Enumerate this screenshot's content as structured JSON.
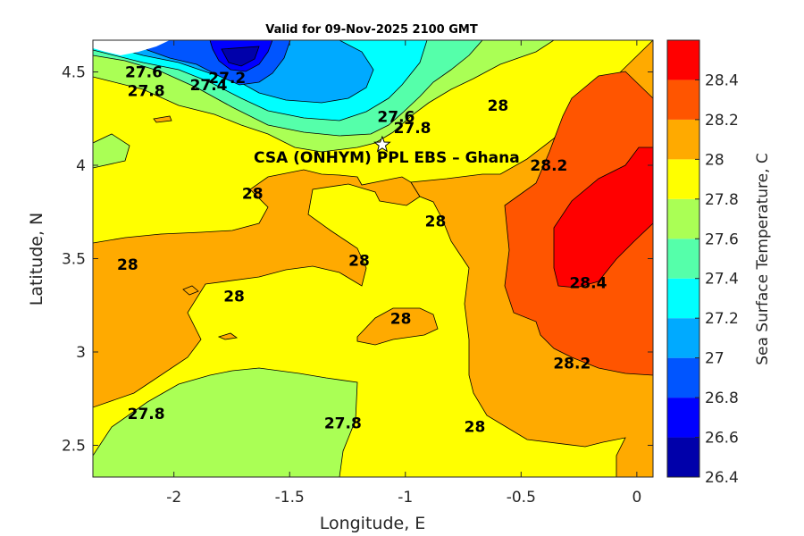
{
  "chart_data": {
    "type": "heatmap",
    "subtype": "filled-contour",
    "title": "Valid for 09-Nov-2025 2100 GMT",
    "xlabel": "Longitude, E",
    "ylabel": "Latitude, N",
    "xlim": [
      -2.35,
      0.07
    ],
    "ylim": [
      2.33,
      4.67
    ],
    "x_ticks": [
      -2,
      -1.5,
      -1,
      -0.5,
      0
    ],
    "x_tick_labels": [
      "-2",
      "-1.5",
      "-1",
      "-0.5",
      "0"
    ],
    "y_ticks": [
      2.5,
      3,
      3.5,
      4,
      4.5
    ],
    "y_tick_labels": [
      "2.5",
      "3",
      "3.5",
      "4",
      "4.5"
    ],
    "colorbar": {
      "label": "Sea Surface Temperature, C",
      "ticks": [
        26.4,
        26.6,
        26.8,
        27,
        27.2,
        27.4,
        27.6,
        27.8,
        28,
        28.2,
        28.4
      ],
      "tick_labels": [
        "26.4",
        "26.6",
        "26.8",
        "27",
        "27.2",
        "27.4",
        "27.6",
        "27.8",
        "28",
        "28.2",
        "28.4"
      ],
      "levels": [
        {
          "min": 26.4,
          "max": 26.6,
          "color": "#0000aa"
        },
        {
          "min": 26.6,
          "max": 26.8,
          "color": "#0000ff"
        },
        {
          "min": 26.8,
          "max": 27.0,
          "color": "#0055ff"
        },
        {
          "min": 27.0,
          "max": 27.2,
          "color": "#00aaff"
        },
        {
          "min": 27.2,
          "max": 27.4,
          "color": "#00ffff"
        },
        {
          "min": 27.4,
          "max": 27.6,
          "color": "#55ffaa"
        },
        {
          "min": 27.6,
          "max": 27.8,
          "color": "#aaff55"
        },
        {
          "min": 27.8,
          "max": 28.0,
          "color": "#ffff00"
        },
        {
          "min": 28.0,
          "max": 28.2,
          "color": "#ffaa00"
        },
        {
          "min": 28.2,
          "max": 28.4,
          "color": "#ff5500"
        },
        {
          "min": 28.4,
          "max": 28.6,
          "color": "#ff0000"
        }
      ]
    },
    "site": {
      "name": "CSA (ONHYM) PPL EBS  – Ghana",
      "lon": -1.1,
      "lat": 4.11
    },
    "contour_labels": [
      {
        "text": "27.6",
        "lon": -2.13,
        "lat": 4.5
      },
      {
        "text": "27.8",
        "lon": -2.12,
        "lat": 4.4
      },
      {
        "text": "27.4",
        "lon": -1.85,
        "lat": 4.43
      },
      {
        "text": "27.2",
        "lon": -1.77,
        "lat": 4.47
      },
      {
        "text": "27.6",
        "lon": -1.04,
        "lat": 4.26
      },
      {
        "text": "27.8",
        "lon": -0.97,
        "lat": 4.2
      },
      {
        "text": "28",
        "lon": -0.6,
        "lat": 4.32
      },
      {
        "text": "28.2",
        "lon": -0.38,
        "lat": 4.0
      },
      {
        "text": "28",
        "lon": -1.66,
        "lat": 3.85
      },
      {
        "text": "28",
        "lon": -0.87,
        "lat": 3.7
      },
      {
        "text": "28",
        "lon": -2.2,
        "lat": 3.47
      },
      {
        "text": "28",
        "lon": -1.2,
        "lat": 3.49
      },
      {
        "text": "28",
        "lon": -1.74,
        "lat": 3.3
      },
      {
        "text": "28",
        "lon": -1.02,
        "lat": 3.18
      },
      {
        "text": "28.4",
        "lon": -0.21,
        "lat": 3.37
      },
      {
        "text": "28.2",
        "lon": -0.28,
        "lat": 2.94
      },
      {
        "text": "27.8",
        "lon": -2.12,
        "lat": 2.67
      },
      {
        "text": "27.8",
        "lon": -1.27,
        "lat": 2.62
      },
      {
        "text": "28",
        "lon": -0.7,
        "lat": 2.6
      }
    ]
  }
}
